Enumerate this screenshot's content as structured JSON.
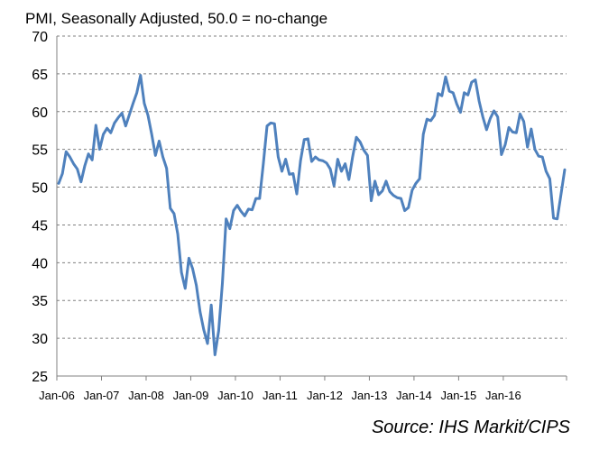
{
  "source": "Source: IHS Markit/CIPS",
  "chart_data": {
    "type": "line",
    "title": "PMI, Seasonally Adjusted, 50.0 = no-change",
    "xlabel": "",
    "ylabel": "",
    "ylim": [
      25,
      70
    ],
    "y_ticks": [
      25,
      30,
      35,
      40,
      45,
      50,
      55,
      60,
      65,
      70
    ],
    "x_tick_labels": [
      "Jan-06",
      "Jan-07",
      "Jan-08",
      "Jan-09",
      "Jan-10",
      "Jan-11",
      "Jan-12",
      "Jan-13",
      "Jan-14",
      "Jan-15",
      "Jan-16"
    ],
    "grid": "horizontal-dashed",
    "line_color": "#4f81bd",
    "start_month": "Jan-06",
    "values": [
      50.5,
      51.8,
      54.7,
      54.0,
      53.1,
      52.4,
      50.7,
      52.8,
      54.4,
      53.6,
      58.2,
      55.0,
      57.0,
      57.8,
      57.2,
      58.5,
      59.2,
      59.8,
      58.1,
      59.6,
      61.1,
      62.5,
      64.8,
      61.1,
      59.5,
      57.0,
      54.2,
      56.1,
      54.0,
      52.5,
      47.2,
      46.5,
      43.8,
      38.7,
      36.6,
      40.6,
      39.2,
      37.0,
      33.5,
      31.1,
      29.3,
      34.4,
      27.8,
      31.0,
      37.3,
      45.8,
      44.5,
      46.9,
      47.6,
      46.8,
      46.2,
      47.1,
      47.0,
      48.5,
      48.5,
      53.1,
      58.1,
      58.5,
      58.4,
      54.0,
      52.1,
      53.7,
      51.7,
      51.8,
      49.1,
      53.5,
      56.3,
      56.4,
      53.4,
      54.0,
      53.6,
      53.5,
      53.2,
      52.4,
      50.2,
      53.7,
      52.1,
      53.1,
      51.0,
      54.0,
      56.6,
      56.0,
      54.9,
      54.2,
      48.2,
      50.8,
      49.0,
      49.5,
      50.8,
      49.4,
      48.9,
      48.6,
      48.5,
      46.9,
      47.3,
      49.6,
      50.5,
      51.1,
      57.0,
      59.0,
      58.8,
      59.5,
      62.4,
      62.1,
      64.6,
      62.7,
      62.5,
      61.0,
      59.9,
      62.5,
      62.2,
      63.9,
      64.2,
      61.4,
      59.3,
      57.6,
      59.1,
      60.1,
      59.3,
      54.3,
      55.6,
      57.9,
      57.3,
      57.2,
      59.7,
      58.7,
      55.3,
      57.7,
      55.0,
      54.1,
      54.0,
      52.1,
      51.1,
      45.9,
      45.8,
      49.0,
      52.3
    ]
  }
}
